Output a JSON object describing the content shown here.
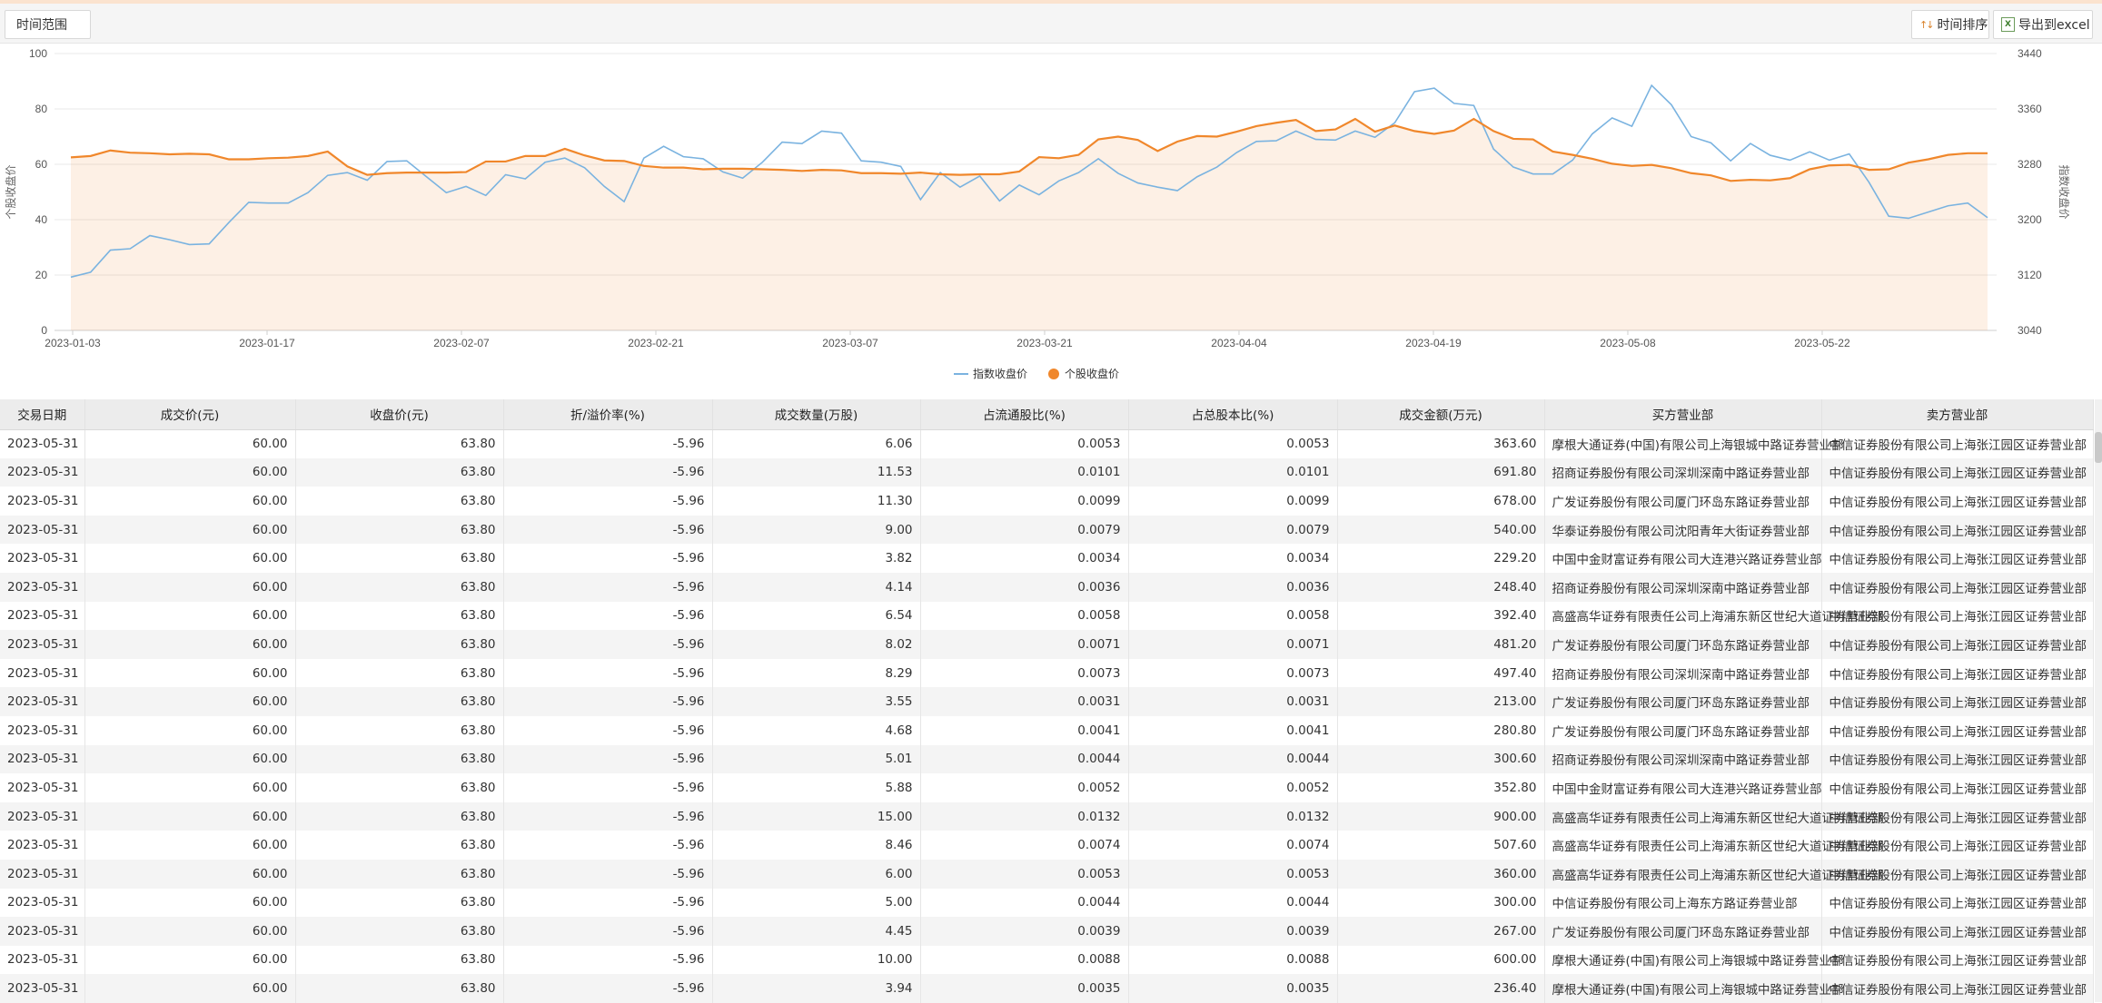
{
  "toolbar": {
    "time_range_label": "时间范围",
    "sort_label": "时间排序",
    "export_label": "导出到excel"
  },
  "chart_data": {
    "type": "line",
    "x_ticks": [
      "2023-01-03",
      "2023-01-17",
      "2023-02-07",
      "2023-02-21",
      "2023-03-07",
      "2023-03-21",
      "2023-04-04",
      "2023-04-19",
      "2023-05-08",
      "2023-05-22"
    ],
    "left_axis": {
      "label": "个股收盘价",
      "ticks": [
        "100",
        "80",
        "60",
        "40",
        "20",
        "0"
      ],
      "range": [
        0,
        100
      ]
    },
    "right_axis": {
      "label": "指数收盘价",
      "ticks": [
        "3440",
        "3360",
        "3280",
        "3200",
        "3120",
        "3040"
      ],
      "range": [
        3040,
        3440
      ]
    },
    "legend_position": "bottom",
    "series": [
      {
        "name": "指数收盘价",
        "color": "#7ab3e0",
        "axis": "right",
        "values": [
          3117,
          3124,
          3156,
          3158,
          3177,
          3171,
          3164,
          3165,
          3196,
          3225,
          3224,
          3224,
          3239,
          3264,
          3268,
          3257,
          3284,
          3285,
          3262,
          3239,
          3248,
          3235,
          3265,
          3259,
          3283,
          3289,
          3275,
          3248,
          3226,
          3289,
          3306,
          3291,
          3288,
          3269,
          3260,
          3283,
          3312,
          3310,
          3328,
          3325,
          3285,
          3283,
          3277,
          3229,
          3268,
          3247,
          3263,
          3227,
          3250,
          3236,
          3256,
          3268,
          3288,
          3267,
          3253,
          3247,
          3242,
          3262,
          3276,
          3297,
          3313,
          3314,
          3328,
          3316,
          3315,
          3328,
          3319,
          3340,
          3385,
          3390,
          3368,
          3365,
          3302,
          3276,
          3266,
          3266,
          3286,
          3324,
          3347,
          3335,
          3394,
          3366,
          3320,
          3311,
          3285,
          3310,
          3293,
          3286,
          3298,
          3286,
          3295,
          3254,
          3205,
          3202,
          3211,
          3220,
          3224,
          3203
        ]
      },
      {
        "name": "个股收盘价",
        "color": "#f0872b",
        "axis": "left",
        "values": [
          62.5,
          63,
          65,
          64.2,
          64,
          63.6,
          63.8,
          63.6,
          61.8,
          61.8,
          62.2,
          62.4,
          63,
          64.6,
          59.2,
          56.2,
          56.8,
          57,
          57,
          57,
          57.2,
          61,
          61,
          63,
          63,
          65.6,
          63.2,
          61.4,
          61.2,
          59.4,
          58.8,
          58.8,
          58.2,
          58.4,
          58.4,
          58.2,
          58,
          57.6,
          58,
          57.8,
          56.8,
          56.8,
          56.6,
          57,
          56.4,
          56.2,
          56.4,
          56.4,
          57.4,
          62.6,
          62.2,
          63.4,
          69,
          70,
          68.8,
          64.8,
          68.2,
          70.2,
          70,
          71.8,
          73.8,
          75,
          76,
          72,
          72.6,
          76.4,
          71.8,
          74,
          72,
          71,
          72.2,
          76.4,
          72,
          69.2,
          69,
          64.6,
          63.4,
          62,
          60.2,
          59.4,
          59.8,
          58.6,
          56.8,
          56,
          54,
          54.4,
          54.2,
          55,
          58.2,
          59.6,
          59.8,
          58,
          58.2,
          60.6,
          61.8,
          63.4,
          64,
          64
        ]
      }
    ]
  },
  "table": {
    "columns": [
      "交易日期",
      "成交价(元)",
      "收盘价(元)",
      "折/溢价率(%)",
      "成交数量(万股)",
      "占流通股比(%)",
      "占总股本比(%)",
      "成交金额(万元)",
      "买方营业部",
      "卖方营业部"
    ],
    "rows": [
      [
        "2023-05-31",
        "60.00",
        "63.80",
        "-5.96",
        "6.06",
        "0.0053",
        "0.0053",
        "363.60",
        "摩根大通证券(中国)有限公司上海银城中路证券营业部",
        "中信证券股份有限公司上海张江园区证券营业部"
      ],
      [
        "2023-05-31",
        "60.00",
        "63.80",
        "-5.96",
        "11.53",
        "0.0101",
        "0.0101",
        "691.80",
        "招商证券股份有限公司深圳深南中路证券营业部",
        "中信证券股份有限公司上海张江园区证券营业部"
      ],
      [
        "2023-05-31",
        "60.00",
        "63.80",
        "-5.96",
        "11.30",
        "0.0099",
        "0.0099",
        "678.00",
        "广发证券股份有限公司厦门环岛东路证券营业部",
        "中信证券股份有限公司上海张江园区证券营业部"
      ],
      [
        "2023-05-31",
        "60.00",
        "63.80",
        "-5.96",
        "9.00",
        "0.0079",
        "0.0079",
        "540.00",
        "华泰证券股份有限公司沈阳青年大街证券营业部",
        "中信证券股份有限公司上海张江园区证券营业部"
      ],
      [
        "2023-05-31",
        "60.00",
        "63.80",
        "-5.96",
        "3.82",
        "0.0034",
        "0.0034",
        "229.20",
        "中国中金财富证券有限公司大连港兴路证券营业部",
        "中信证券股份有限公司上海张江园区证券营业部"
      ],
      [
        "2023-05-31",
        "60.00",
        "63.80",
        "-5.96",
        "4.14",
        "0.0036",
        "0.0036",
        "248.40",
        "招商证券股份有限公司深圳深南中路证券营业部",
        "中信证券股份有限公司上海张江园区证券营业部"
      ],
      [
        "2023-05-31",
        "60.00",
        "63.80",
        "-5.96",
        "6.54",
        "0.0058",
        "0.0058",
        "392.40",
        "高盛高华证券有限责任公司上海浦东新区世纪大道证券营业部",
        "中信证券股份有限公司上海张江园区证券营业部"
      ],
      [
        "2023-05-31",
        "60.00",
        "63.80",
        "-5.96",
        "8.02",
        "0.0071",
        "0.0071",
        "481.20",
        "广发证券股份有限公司厦门环岛东路证券营业部",
        "中信证券股份有限公司上海张江园区证券营业部"
      ],
      [
        "2023-05-31",
        "60.00",
        "63.80",
        "-5.96",
        "8.29",
        "0.0073",
        "0.0073",
        "497.40",
        "招商证券股份有限公司深圳深南中路证券营业部",
        "中信证券股份有限公司上海张江园区证券营业部"
      ],
      [
        "2023-05-31",
        "60.00",
        "63.80",
        "-5.96",
        "3.55",
        "0.0031",
        "0.0031",
        "213.00",
        "广发证券股份有限公司厦门环岛东路证券营业部",
        "中信证券股份有限公司上海张江园区证券营业部"
      ],
      [
        "2023-05-31",
        "60.00",
        "63.80",
        "-5.96",
        "4.68",
        "0.0041",
        "0.0041",
        "280.80",
        "广发证券股份有限公司厦门环岛东路证券营业部",
        "中信证券股份有限公司上海张江园区证券营业部"
      ],
      [
        "2023-05-31",
        "60.00",
        "63.80",
        "-5.96",
        "5.01",
        "0.0044",
        "0.0044",
        "300.60",
        "招商证券股份有限公司深圳深南中路证券营业部",
        "中信证券股份有限公司上海张江园区证券营业部"
      ],
      [
        "2023-05-31",
        "60.00",
        "63.80",
        "-5.96",
        "5.88",
        "0.0052",
        "0.0052",
        "352.80",
        "中国中金财富证券有限公司大连港兴路证券营业部",
        "中信证券股份有限公司上海张江园区证券营业部"
      ],
      [
        "2023-05-31",
        "60.00",
        "63.80",
        "-5.96",
        "15.00",
        "0.0132",
        "0.0132",
        "900.00",
        "高盛高华证券有限责任公司上海浦东新区世纪大道证券营业部",
        "中信证券股份有限公司上海张江园区证券营业部"
      ],
      [
        "2023-05-31",
        "60.00",
        "63.80",
        "-5.96",
        "8.46",
        "0.0074",
        "0.0074",
        "507.60",
        "高盛高华证券有限责任公司上海浦东新区世纪大道证券营业部",
        "中信证券股份有限公司上海张江园区证券营业部"
      ],
      [
        "2023-05-31",
        "60.00",
        "63.80",
        "-5.96",
        "6.00",
        "0.0053",
        "0.0053",
        "360.00",
        "高盛高华证券有限责任公司上海浦东新区世纪大道证券营业部",
        "中信证券股份有限公司上海张江园区证券营业部"
      ],
      [
        "2023-05-31",
        "60.00",
        "63.80",
        "-5.96",
        "5.00",
        "0.0044",
        "0.0044",
        "300.00",
        "中信证券股份有限公司上海东方路证券营业部",
        "中信证券股份有限公司上海张江园区证券营业部"
      ],
      [
        "2023-05-31",
        "60.00",
        "63.80",
        "-5.96",
        "4.45",
        "0.0039",
        "0.0039",
        "267.00",
        "广发证券股份有限公司厦门环岛东路证券营业部",
        "中信证券股份有限公司上海张江园区证券营业部"
      ],
      [
        "2023-05-31",
        "60.00",
        "63.80",
        "-5.96",
        "10.00",
        "0.0088",
        "0.0088",
        "600.00",
        "摩根大通证券(中国)有限公司上海银城中路证券营业部",
        "中信证券股份有限公司上海张江园区证券营业部"
      ],
      [
        "2023-05-31",
        "60.00",
        "63.80",
        "-5.96",
        "3.94",
        "0.0035",
        "0.0035",
        "236.40",
        "摩根大通证券(中国)有限公司上海银城中路证券营业部",
        "中信证券股份有限公司上海张江园区证券营业部"
      ]
    ]
  }
}
